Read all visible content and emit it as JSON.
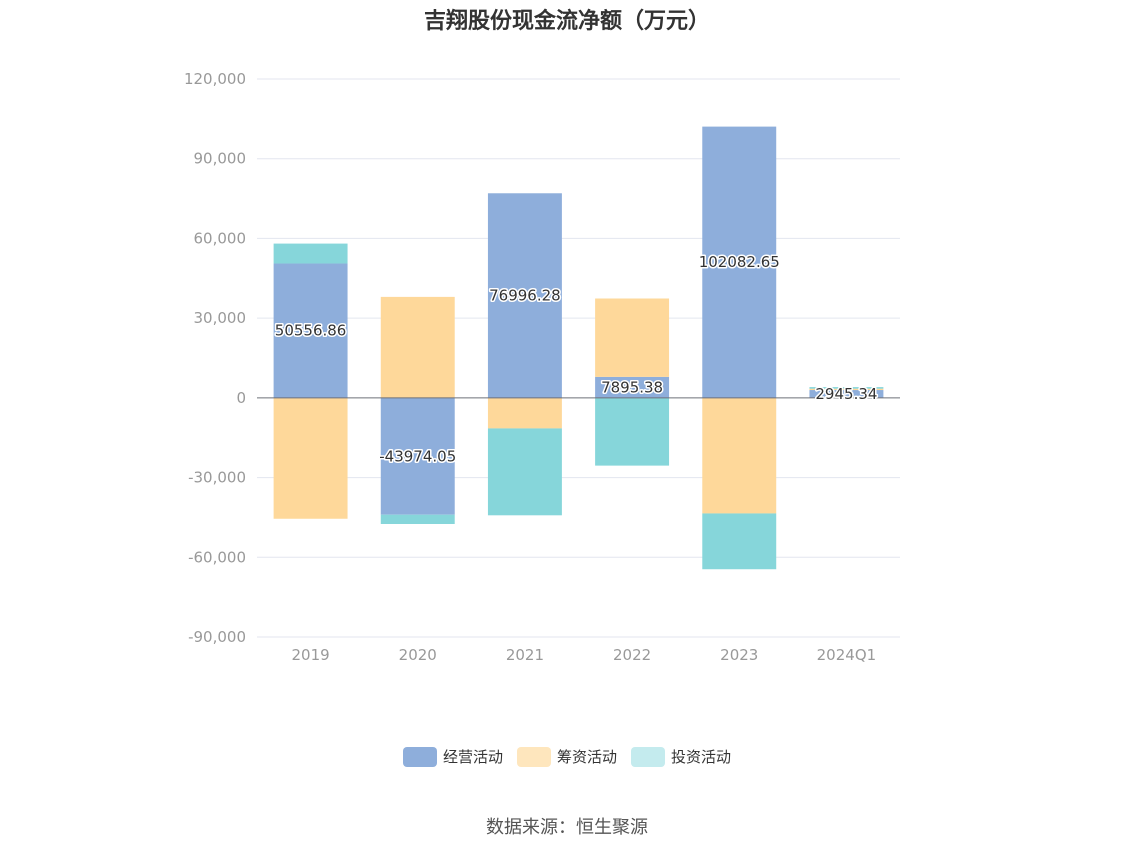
{
  "chart_data": {
    "type": "bar",
    "stacked": true,
    "title": "吉翔股份现金流净额（万元）",
    "categories": [
      "2019",
      "2020",
      "2021",
      "2022",
      "2023",
      "2024Q1"
    ],
    "ylim": [
      -90000,
      120000
    ],
    "yticks": [
      -90000,
      -60000,
      -30000,
      0,
      30000,
      60000,
      90000,
      120000
    ],
    "ytick_labels": [
      "-90,000",
      "-60,000",
      "-30,000",
      "0",
      "30,000",
      "60,000",
      "90,000",
      "120,000"
    ],
    "grid": true,
    "legend_position": "bottom",
    "series": [
      {
        "name": "经营活动",
        "color": "#8eaedb",
        "values": [
          50556.86,
          -43974.05,
          76996.28,
          7895.38,
          102082.65,
          2945.34
        ],
        "labels": [
          "50556.86",
          "-43974.05",
          "76996.28",
          "7895.38",
          "102082.65",
          "2945.34"
        ]
      },
      {
        "name": "筹资活动",
        "color": "#fed89a",
        "values": [
          -45500,
          38000,
          -11500,
          29500,
          -43500,
          500
        ]
      },
      {
        "name": "投资活动",
        "color": "#86d6da",
        "values": [
          7500,
          -3500,
          -32700,
          -25500,
          -21000,
          600
        ]
      }
    ]
  },
  "legend": {
    "legend_label_0": "经营活动",
    "legend_label_1": "筹资活动",
    "legend_label_2": "投资活动",
    "legend_swatch_2": "#c4ebee"
  },
  "source": "数据来源：恒生聚源"
}
